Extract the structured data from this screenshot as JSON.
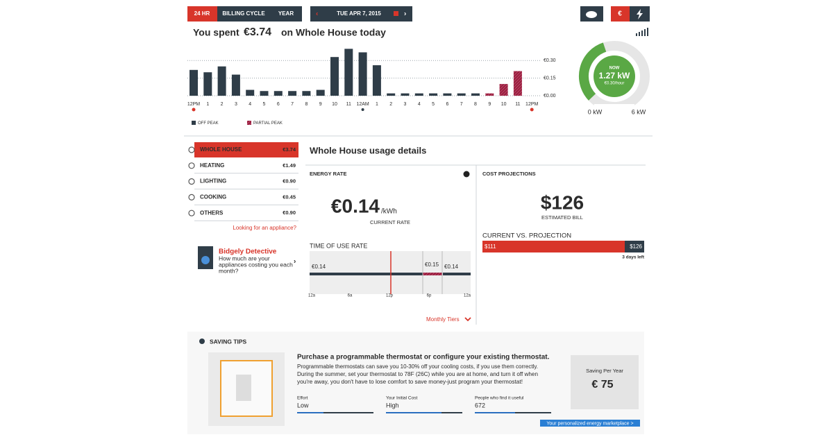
{
  "top_bar": {
    "tabs": [
      "24 HR",
      "BILLING CYCLE",
      "YEAR"
    ],
    "date": "TUE APR 7, 2015"
  },
  "summary": {
    "prefix": "You spent",
    "amount": "€3.74",
    "suffix": "on Whole House today"
  },
  "chart_data": {
    "type": "bar",
    "categories": [
      "12PM",
      "1",
      "2",
      "3",
      "4",
      "5",
      "6",
      "7",
      "8",
      "9",
      "10",
      "11",
      "12AM",
      "1",
      "2",
      "3",
      "4",
      "5",
      "6",
      "7",
      "8",
      "9",
      "10",
      "11",
      "12PM"
    ],
    "series": [
      {
        "name": "OFF PEAK",
        "color": "#2f3d48",
        "values": [
          0.22,
          0.2,
          0.25,
          0.18,
          0.05,
          0.04,
          0.04,
          0.04,
          0.04,
          0.05,
          0.33,
          0.4,
          0.37,
          0.26,
          0.02,
          0.02,
          0.02,
          0.02,
          0.02,
          0.02,
          0.02,
          null,
          null,
          null,
          null
        ]
      },
      {
        "name": "PARTIAL PEAK",
        "color": "#9b1f3f",
        "values": [
          null,
          null,
          null,
          null,
          null,
          null,
          null,
          null,
          null,
          null,
          null,
          null,
          null,
          null,
          null,
          null,
          null,
          null,
          null,
          null,
          null,
          0.02,
          0.1,
          0.21,
          null
        ]
      }
    ],
    "ylim": [
      0,
      0.42
    ],
    "yticks": [
      {
        "value": 0,
        "label": "€0.00"
      },
      {
        "value": 0.15,
        "label": "€0.15"
      },
      {
        "value": 0.3,
        "label": "€0.30"
      }
    ],
    "grid": true
  },
  "gauge": {
    "status": "NOW",
    "reading": "1.27 kW",
    "cost": "€0.30/hour",
    "min_label": "0 kW",
    "max_label": "6 kW"
  },
  "sidebar": {
    "items": [
      {
        "label": "WHOLE HOUSE",
        "amount": "€3.74"
      },
      {
        "label": "HEATING",
        "amount": "€1.49"
      },
      {
        "label": "LIGHTING",
        "amount": "€0.90"
      },
      {
        "label": "COOKING",
        "amount": "€0.45"
      },
      {
        "label": "OTHERS",
        "amount": "€0.90"
      }
    ],
    "link": "Looking for an appliance?",
    "detective": {
      "title": "Bidgely Detective",
      "lines": [
        "How much are your",
        "appliances costing you each",
        "month?"
      ]
    }
  },
  "details": {
    "title": "Whole House usage details",
    "energy_rate": {
      "heading": "ENERGY RATE",
      "value": "€0.14",
      "unit": "/kWh",
      "caption": "CURRENT RATE"
    },
    "time_of_use": {
      "heading": "TIME OF USE RATE",
      "rates": [
        "€0.14",
        "€0.15",
        "€0.14"
      ],
      "times": [
        "12a",
        "6a",
        "12p",
        "6p",
        "12a"
      ],
      "link": "Monthly Tiers"
    },
    "cost_projections": {
      "heading": "COST PROJECTIONS",
      "value": "$126",
      "caption": "ESTIMATED BILL",
      "comparison_heading": "CURRENT VS. PROJECTION",
      "current": "$111",
      "projection": "$126",
      "remaining": "3 days left"
    }
  },
  "saving_tips": {
    "heading": "SAVING TIPS",
    "tip_title": "Purchase a programmable thermostat or configure your existing thermostat.",
    "lines": [
      "Programmable thermostats can save you 10-30% off your cooling costs, if you use them correctly.",
      "During the summer, set your thermostat to 78F (26C) while you are at home, and turn it off when",
      "you're away, you don't have to lose comfort to save money-just program your thermostat!"
    ],
    "metrics": [
      {
        "label": "Effort",
        "value": "Low"
      },
      {
        "label": "Your Initial Cost",
        "value": "High"
      },
      {
        "label": "People who find it useful",
        "value": "672"
      }
    ],
    "saving_label": "Saving Per Year",
    "saving_value": "€ 75",
    "button": "Your personalized energy marketplace >"
  }
}
